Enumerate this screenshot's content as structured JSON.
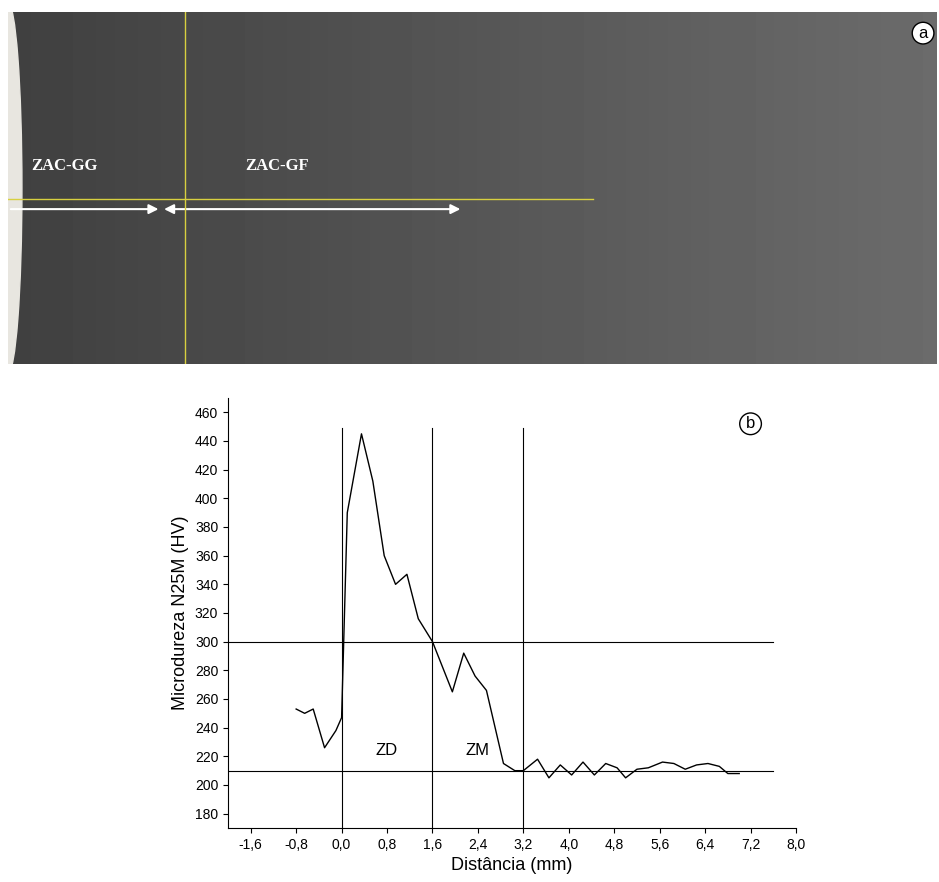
{
  "image": {
    "panel_label": "a",
    "labels": [
      "ZAC-GG",
      "ZAC-GF"
    ]
  },
  "chart_data": {
    "type": "line",
    "panel_label": "b",
    "x_label": "Distância (mm)",
    "y_label": "Microdureza N25M (HV)",
    "x": [
      -0.8,
      -0.65,
      -0.5,
      -0.3,
      -0.1,
      0.0,
      0.1,
      0.35,
      0.55,
      0.75,
      0.95,
      1.15,
      1.35,
      1.6,
      1.95,
      2.15,
      2.35,
      2.55,
      2.85,
      3.05,
      3.2,
      3.45,
      3.65,
      3.85,
      4.05,
      4.25,
      4.45,
      4.65,
      4.85,
      5.0,
      5.2,
      5.4,
      5.65,
      5.85,
      6.05,
      6.25,
      6.45,
      6.65,
      6.8,
      7.0
    ],
    "values": [
      253,
      250,
      253,
      226,
      238,
      247,
      390,
      445,
      412,
      360,
      340,
      347,
      316,
      300,
      265,
      292,
      276,
      266,
      215,
      210,
      210,
      218,
      205,
      214,
      207,
      216,
      207,
      215,
      212,
      205,
      211,
      212,
      216,
      215,
      211,
      214,
      215,
      213,
      208,
      208
    ],
    "color": "#000000",
    "vlines": [
      0.0,
      1.6,
      3.2
    ],
    "hlines": [
      300,
      210
    ],
    "annotations": [
      "ZD",
      "ZM"
    ],
    "xlim": [
      -2.0,
      8.0
    ],
    "ylim": [
      170,
      470
    ],
    "xticks": [
      {
        "value": -1.6,
        "label": "-1,6"
      },
      {
        "value": -0.8,
        "label": "-0,8"
      },
      {
        "value": 0.0,
        "label": "0,0"
      },
      {
        "value": 0.8,
        "label": "0,8"
      },
      {
        "value": 1.6,
        "label": "1,6"
      },
      {
        "value": 2.4,
        "label": "2,4"
      },
      {
        "value": 3.2,
        "label": "3,2"
      },
      {
        "value": 4.0,
        "label": "4,0"
      },
      {
        "value": 4.8,
        "label": "4,8"
      },
      {
        "value": 5.6,
        "label": "5,6"
      },
      {
        "value": 6.4,
        "label": "6,4"
      },
      {
        "value": 7.2,
        "label": "7,2"
      },
      {
        "value": 8.0,
        "label": "8,0"
      }
    ],
    "yticks": [
      180,
      200,
      220,
      240,
      260,
      280,
      300,
      320,
      340,
      360,
      380,
      400,
      420,
      440,
      460
    ],
    "grid": false
  }
}
